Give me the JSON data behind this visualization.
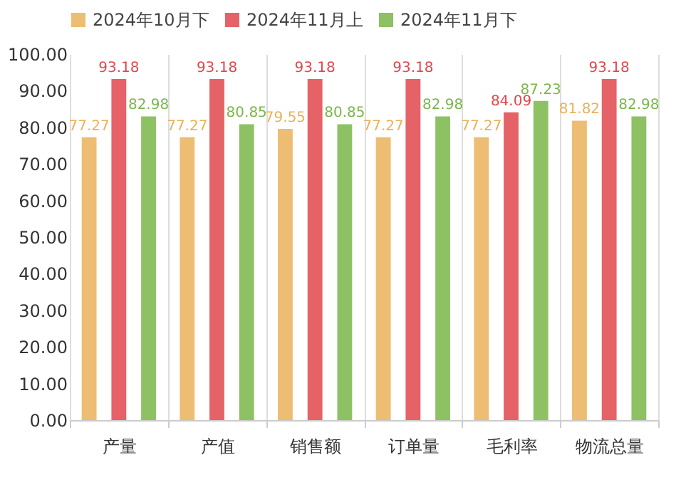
{
  "chart_data": {
    "type": "bar",
    "categories": [
      "产量",
      "产值",
      "销售额",
      "订单量",
      "毛利率",
      "物流总量"
    ],
    "series": [
      {
        "name": "2024年10月下",
        "color": "#eab15a",
        "values": [
          77.27,
          77.27,
          79.55,
          77.27,
          77.27,
          81.82
        ]
      },
      {
        "name": "2024年11月上",
        "color": "#e0474c",
        "values": [
          93.18,
          93.18,
          93.18,
          93.18,
          84.09,
          93.18
        ]
      },
      {
        "name": "2024年11月下",
        "color": "#7ab648",
        "values": [
          82.98,
          80.85,
          80.85,
          82.98,
          87.23,
          82.98
        ]
      }
    ],
    "ylim": [
      0,
      100
    ],
    "yticks": [
      {
        "value": 0,
        "label": "0.00"
      },
      {
        "value": 10,
        "label": "10.00"
      },
      {
        "value": 20,
        "label": "20.00"
      },
      {
        "value": 30,
        "label": "30.00"
      },
      {
        "value": 40,
        "label": "40.00"
      },
      {
        "value": 50,
        "label": "50.00"
      },
      {
        "value": 60,
        "label": "60.00"
      },
      {
        "value": 70,
        "label": "70.00"
      },
      {
        "value": 80,
        "label": "80.00"
      },
      {
        "value": 90,
        "label": "90.00"
      },
      {
        "value": 100,
        "label": "100.00"
      }
    ],
    "grid": "x",
    "legend": "top",
    "data_labels": true
  }
}
